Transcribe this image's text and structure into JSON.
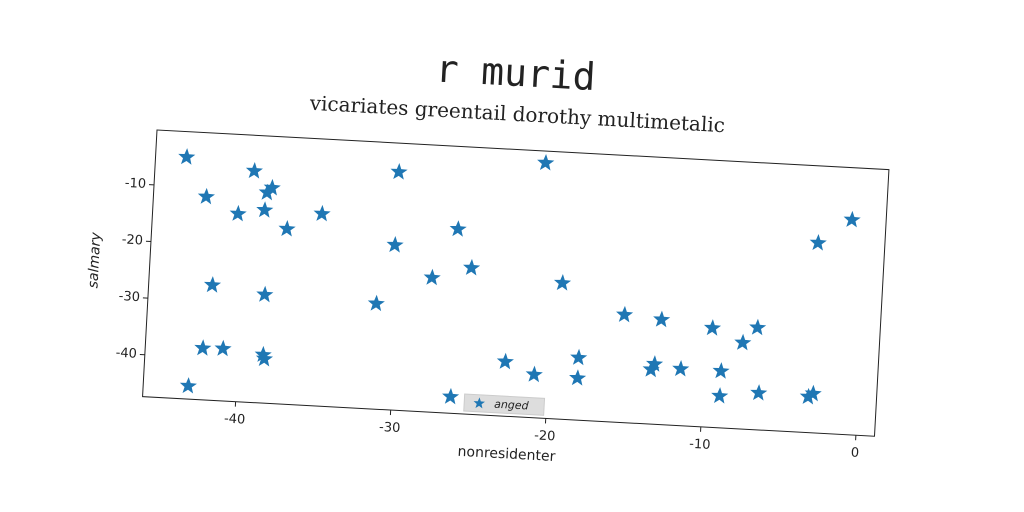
{
  "chart_data": {
    "type": "scatter",
    "title": "r murid",
    "subtitle": "vicariates greentail dorothy multimetalic",
    "xlabel": "nonresidenter",
    "ylabel": "salmary",
    "xlim": [
      -46,
      1.2
    ],
    "ylim": [
      -47.4,
      -0.3
    ],
    "xticks": [
      -40,
      -30,
      -20,
      -10,
      0
    ],
    "yticks": [
      -40,
      -30,
      -20,
      -10
    ],
    "legend": "lower center",
    "marker": "star",
    "series": [
      {
        "name": "anged",
        "color": "#1f77b4",
        "x": [
          -44.0,
          -42.6,
          -39.6,
          -38.7,
          -38.4,
          -38.8,
          -40.5,
          -37.3,
          -35.1,
          -30.3,
          -20.9,
          -30.3,
          -26.3,
          -27.8,
          -25.3,
          -41.9,
          -38.5,
          -31.3,
          -19.4,
          -15.3,
          -12.9,
          -9.6,
          -6.7,
          -7.6,
          -3.1,
          -1.0,
          -42.3,
          -41.0,
          -38.4,
          -38.3,
          -43.1,
          -26.2,
          -22.8,
          -20.9,
          -18.1,
          -18.1,
          -13.4,
          -13.2,
          -11.5,
          -8.9,
          -8.9,
          -6.4,
          -3.2,
          -2.9
        ],
        "values": [
          -4.8,
          -11.6,
          -6.6,
          -10.3,
          -9.4,
          -13.4,
          -14.3,
          -16.5,
          -13.5,
          -5.4,
          -2.4,
          -18.3,
          -14.9,
          -23.7,
          -21.6,
          -27.1,
          -28.3,
          -28.8,
          -23.4,
          -28.4,
          -28.9,
          -29.9,
          -29.4,
          -32.2,
          -13.9,
          -9.5,
          -38.3,
          -38.2,
          -38.9,
          -39.6,
          -45.1,
          -44.5,
          -37.8,
          -39.8,
          -36.4,
          -40.0,
          -37.8,
          -36.8,
          -37.4,
          -37.4,
          -41.8,
          -40.9,
          -41.1,
          -40.5
        ]
      }
    ]
  }
}
